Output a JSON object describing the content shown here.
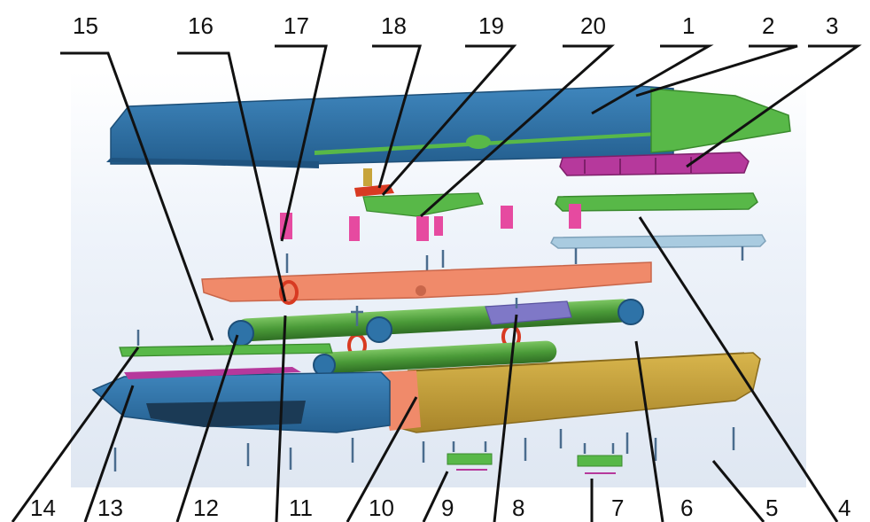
{
  "diagram": {
    "labels_top": [
      "15",
      "16",
      "17",
      "18",
      "19",
      "20",
      "1",
      "2",
      "3"
    ],
    "labels_bottom": [
      "14",
      "13",
      "12",
      "11",
      "10",
      "9",
      "8",
      "7",
      "6",
      "5",
      "4"
    ],
    "colors": {
      "upper_cover": "#2e73a8",
      "green_part": "#58b848",
      "magenta_part": "#b6399c",
      "pink_part": "#e64aa0",
      "salmon_plate": "#f08a6a",
      "tube_green": "#4a9a38",
      "lower_yellow": "#c7a43a",
      "light_plate": "#a9cbe0",
      "purple_block": "#7f78c7",
      "red_ring": "#d83a22",
      "screw": "#4a6c8e",
      "background_tint": "#e6ecf5"
    }
  }
}
